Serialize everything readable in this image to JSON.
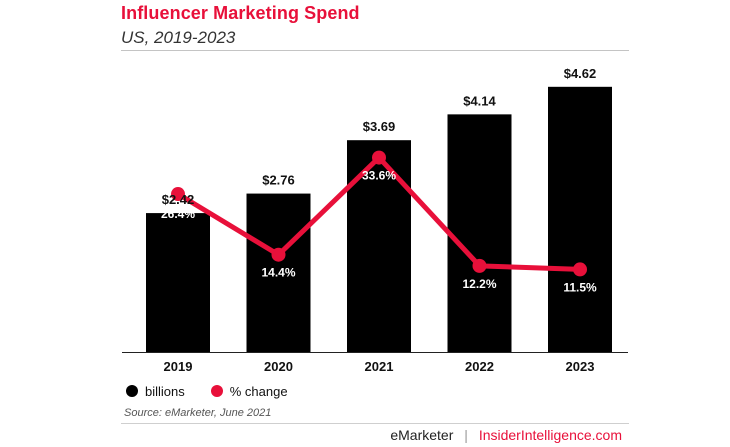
{
  "header": {
    "title": "Influencer Marketing Spend",
    "subtitle": "US, 2019-2023"
  },
  "colors": {
    "bar": "#000000",
    "line": "#e8103a",
    "title": "#e8103a",
    "link": "#e8103a"
  },
  "chart_data": {
    "type": "bar",
    "categories": [
      "2019",
      "2020",
      "2021",
      "2022",
      "2023"
    ],
    "series": [
      {
        "name": "billions",
        "type": "bar",
        "values": [
          2.42,
          2.76,
          3.69,
          4.14,
          4.62
        ],
        "labels": [
          "$2.42",
          "$2.76",
          "$3.69",
          "$4.14",
          "$4.62"
        ]
      },
      {
        "name": "% change",
        "type": "line",
        "values": [
          26.4,
          14.4,
          33.6,
          12.2,
          11.5
        ],
        "labels": [
          "26.4%",
          "14.4%",
          "33.6%",
          "12.2%",
          "11.5%"
        ]
      }
    ],
    "title": "Influencer Marketing Spend",
    "subtitle": "US, 2019-2023",
    "legend_position": "bottom-left",
    "grid": false
  },
  "legend": {
    "items": [
      {
        "label": "billions",
        "color": "#000000"
      },
      {
        "label": "% change",
        "color": "#e8103a"
      }
    ]
  },
  "footer": {
    "source": "Source: eMarketer, June 2021",
    "brand": "eMarketer",
    "separator": "|",
    "site": "InsiderIntelligence.com"
  }
}
